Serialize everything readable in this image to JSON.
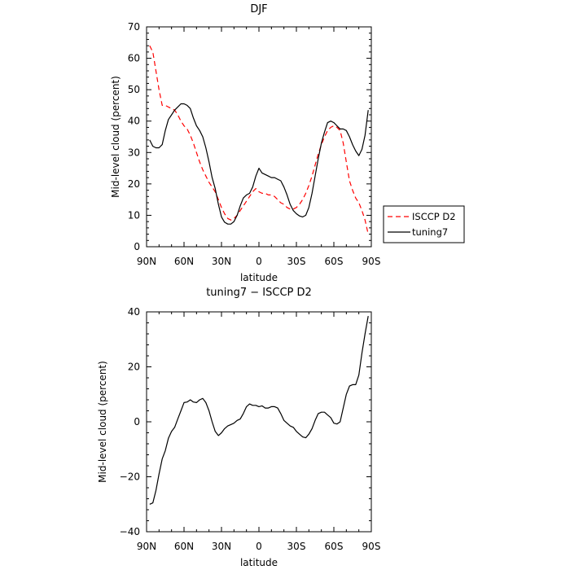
{
  "chart_data": [
    {
      "type": "line",
      "title": "DJF",
      "xlabel": "latitude",
      "ylabel": "Mid-level cloud (percent)",
      "xlim": [
        90,
        -90
      ],
      "ylim": [
        0,
        70
      ],
      "xticks": [
        90,
        60,
        30,
        0,
        -30,
        -60,
        -90
      ],
      "xtick_labels": [
        "90N",
        "60N",
        "30N",
        "0",
        "30S",
        "60S",
        "90S"
      ],
      "yticks": [
        0,
        10,
        20,
        30,
        40,
        50,
        60,
        70
      ],
      "ytick_labels": [
        "0",
        "10",
        "20",
        "30",
        "40",
        "50",
        "60",
        "70"
      ],
      "legend_position": "right",
      "series": [
        {
          "name": "ISCCP D2",
          "color": "#ff0000",
          "dash": "dashed",
          "points": [
            [
              87.5,
              64
            ],
            [
              85,
              62
            ],
            [
              82.5,
              56
            ],
            [
              80,
              50
            ],
            [
              77.5,
              45
            ],
            [
              75,
              45
            ],
            [
              72.5,
              44.5
            ],
            [
              70,
              44
            ],
            [
              67.5,
              43.5
            ],
            [
              65,
              42
            ],
            [
              62.5,
              40
            ],
            [
              60,
              38.5
            ],
            [
              57.5,
              37.5
            ],
            [
              55,
              35.5
            ],
            [
              52.5,
              33
            ],
            [
              50,
              30
            ],
            [
              47.5,
              27
            ],
            [
              45,
              24.5
            ],
            [
              42.5,
              22.5
            ],
            [
              40,
              20.5
            ],
            [
              37.5,
              19
            ],
            [
              35,
              17.5
            ],
            [
              32.5,
              15
            ],
            [
              30,
              12.5
            ],
            [
              27.5,
              10.5
            ],
            [
              25,
              9
            ],
            [
              22.5,
              8.5
            ],
            [
              20,
              9
            ],
            [
              17.5,
              10
            ],
            [
              15,
              11.5
            ],
            [
              12.5,
              13
            ],
            [
              10,
              14.5
            ],
            [
              7.5,
              16
            ],
            [
              5,
              17.5
            ],
            [
              2.5,
              18.5
            ],
            [
              0,
              17.5
            ],
            [
              -2.5,
              17
            ],
            [
              -5,
              17
            ],
            [
              -7.5,
              16.5
            ],
            [
              -10,
              16.5
            ],
            [
              -12.5,
              16
            ],
            [
              -15,
              15
            ],
            [
              -17.5,
              14
            ],
            [
              -20,
              13.5
            ],
            [
              -22.5,
              12.5
            ],
            [
              -25,
              12
            ],
            [
              -27.5,
              12
            ],
            [
              -30,
              12.5
            ],
            [
              -32.5,
              13.5
            ],
            [
              -35,
              15
            ],
            [
              -37.5,
              17
            ],
            [
              -40,
              19.5
            ],
            [
              -42.5,
              22.5
            ],
            [
              -45,
              26
            ],
            [
              -47.5,
              29.5
            ],
            [
              -50,
              32.5
            ],
            [
              -52.5,
              35
            ],
            [
              -55,
              37
            ],
            [
              -57.5,
              38
            ],
            [
              -60,
              38.5
            ],
            [
              -62.5,
              38
            ],
            [
              -65,
              37
            ],
            [
              -67.5,
              33
            ],
            [
              -70,
              27
            ],
            [
              -72.5,
              21
            ],
            [
              -75,
              18
            ],
            [
              -77.5,
              15.5
            ],
            [
              -80,
              14
            ],
            [
              -82.5,
              11.5
            ],
            [
              -85,
              8.5
            ],
            [
              -87.5,
              4
            ]
          ]
        },
        {
          "name": "tuning7",
          "color": "#000000",
          "dash": "solid",
          "points": [
            [
              87.5,
              34
            ],
            [
              85,
              32
            ],
            [
              82.5,
              31.5
            ],
            [
              80,
              31.5
            ],
            [
              77.5,
              32.5
            ],
            [
              75,
              37
            ],
            [
              72.5,
              40.5
            ],
            [
              70,
              42
            ],
            [
              67.5,
              43.5
            ],
            [
              65,
              44.5
            ],
            [
              62.5,
              45.5
            ],
            [
              60,
              45.5
            ],
            [
              57.5,
              45
            ],
            [
              55,
              44
            ],
            [
              52.5,
              41
            ],
            [
              50,
              38.5
            ],
            [
              47.5,
              37
            ],
            [
              45,
              35
            ],
            [
              42.5,
              31.5
            ],
            [
              40,
              27
            ],
            [
              37.5,
              22
            ],
            [
              35,
              18.5
            ],
            [
              32.5,
              13.5
            ],
            [
              30,
              9.5
            ],
            [
              27.5,
              7.8
            ],
            [
              25,
              7.2
            ],
            [
              22.5,
              7.2
            ],
            [
              20,
              8
            ],
            [
              17.5,
              10
            ],
            [
              15,
              13
            ],
            [
              12.5,
              15.5
            ],
            [
              10,
              16.5
            ],
            [
              7.5,
              17
            ],
            [
              5,
              19
            ],
            [
              2.5,
              22.5
            ],
            [
              0,
              25
            ],
            [
              -2.5,
              23.5
            ],
            [
              -5,
              23
            ],
            [
              -7.5,
              22.5
            ],
            [
              -10,
              22
            ],
            [
              -12.5,
              22
            ],
            [
              -15,
              21.5
            ],
            [
              -17.5,
              21
            ],
            [
              -20,
              19
            ],
            [
              -22.5,
              16.5
            ],
            [
              -25,
              13.5
            ],
            [
              -27.5,
              11.5
            ],
            [
              -30,
              10.5
            ],
            [
              -32.5,
              9.8
            ],
            [
              -35,
              9.5
            ],
            [
              -37.5,
              10
            ],
            [
              -40,
              12.5
            ],
            [
              -42.5,
              17
            ],
            [
              -45,
              22.5
            ],
            [
              -47.5,
              28
            ],
            [
              -50,
              33
            ],
            [
              -52.5,
              36.5
            ],
            [
              -55,
              39.5
            ],
            [
              -57.5,
              40
            ],
            [
              -60,
              39.5
            ],
            [
              -62.5,
              38.5
            ],
            [
              -65,
              37.5
            ],
            [
              -67.5,
              37.5
            ],
            [
              -70,
              37
            ],
            [
              -72.5,
              35
            ],
            [
              -75,
              32.5
            ],
            [
              -77.5,
              30.5
            ],
            [
              -80,
              29
            ],
            [
              -82.5,
              31
            ],
            [
              -85,
              35.5
            ],
            [
              -87.5,
              43.5
            ]
          ]
        }
      ]
    },
    {
      "type": "line",
      "title": "tuning7 − ISCCP D2",
      "xlabel": "latitude",
      "ylabel": "Mid-level cloud (percent)",
      "xlim": [
        90,
        -90
      ],
      "ylim": [
        -40,
        40
      ],
      "xticks": [
        90,
        60,
        30,
        0,
        -30,
        -60,
        -90
      ],
      "xtick_labels": [
        "90N",
        "60N",
        "30N",
        "0",
        "30S",
        "60S",
        "90S"
      ],
      "yticks": [
        -40,
        -20,
        0,
        20,
        40
      ],
      "ytick_labels": [
        "−40",
        "−20",
        "0",
        "20",
        "40"
      ],
      "series": [
        {
          "color": "#000000",
          "dash": "solid",
          "points": [
            [
              87.5,
              -30
            ],
            [
              85,
              -29.5
            ],
            [
              82.5,
              -25
            ],
            [
              80,
              -19
            ],
            [
              77.5,
              -13.5
            ],
            [
              75,
              -10.5
            ],
            [
              72.5,
              -6
            ],
            [
              70,
              -3.5
            ],
            [
              67.5,
              -2
            ],
            [
              65,
              1
            ],
            [
              62.5,
              4
            ],
            [
              60,
              7
            ],
            [
              57.5,
              7.2
            ],
            [
              55,
              8
            ],
            [
              52.5,
              7.2
            ],
            [
              50,
              7
            ],
            [
              47.5,
              8
            ],
            [
              45,
              8.5
            ],
            [
              42.5,
              7
            ],
            [
              40,
              4
            ],
            [
              37.5,
              0
            ],
            [
              35,
              -3.5
            ],
            [
              32.5,
              -5
            ],
            [
              30,
              -4
            ],
            [
              27.5,
              -2.5
            ],
            [
              25,
              -1.5
            ],
            [
              22.5,
              -1
            ],
            [
              20,
              -0.5
            ],
            [
              17.5,
              0.5
            ],
            [
              15,
              1
            ],
            [
              12.5,
              3
            ],
            [
              10,
              5.5
            ],
            [
              7.5,
              6.5
            ],
            [
              5,
              6
            ],
            [
              2.5,
              6
            ],
            [
              0,
              5.5
            ],
            [
              -2.5,
              5.8
            ],
            [
              -5,
              5
            ],
            [
              -7.5,
              5
            ],
            [
              -10,
              5.5
            ],
            [
              -12.5,
              5.5
            ],
            [
              -15,
              5
            ],
            [
              -17.5,
              3
            ],
            [
              -20,
              0.5
            ],
            [
              -22.5,
              -0.5
            ],
            [
              -25,
              -1.5
            ],
            [
              -27.5,
              -2
            ],
            [
              -30,
              -3.5
            ],
            [
              -32.5,
              -4.5
            ],
            [
              -35,
              -5.5
            ],
            [
              -37.5,
              -5.8
            ],
            [
              -40,
              -4.5
            ],
            [
              -42.5,
              -2.5
            ],
            [
              -45,
              0.5
            ],
            [
              -47.5,
              3
            ],
            [
              -50,
              3.5
            ],
            [
              -52.5,
              3.5
            ],
            [
              -55,
              2.5
            ],
            [
              -57.5,
              1.5
            ],
            [
              -60,
              -0.5
            ],
            [
              -62.5,
              -0.8
            ],
            [
              -65,
              0
            ],
            [
              -67.5,
              5
            ],
            [
              -70,
              10
            ],
            [
              -72.5,
              13
            ],
            [
              -75,
              13.5
            ],
            [
              -77.5,
              13.5
            ],
            [
              -80,
              17
            ],
            [
              -82.5,
              25
            ],
            [
              -85,
              32
            ],
            [
              -87.5,
              38.5
            ]
          ]
        }
      ]
    }
  ]
}
